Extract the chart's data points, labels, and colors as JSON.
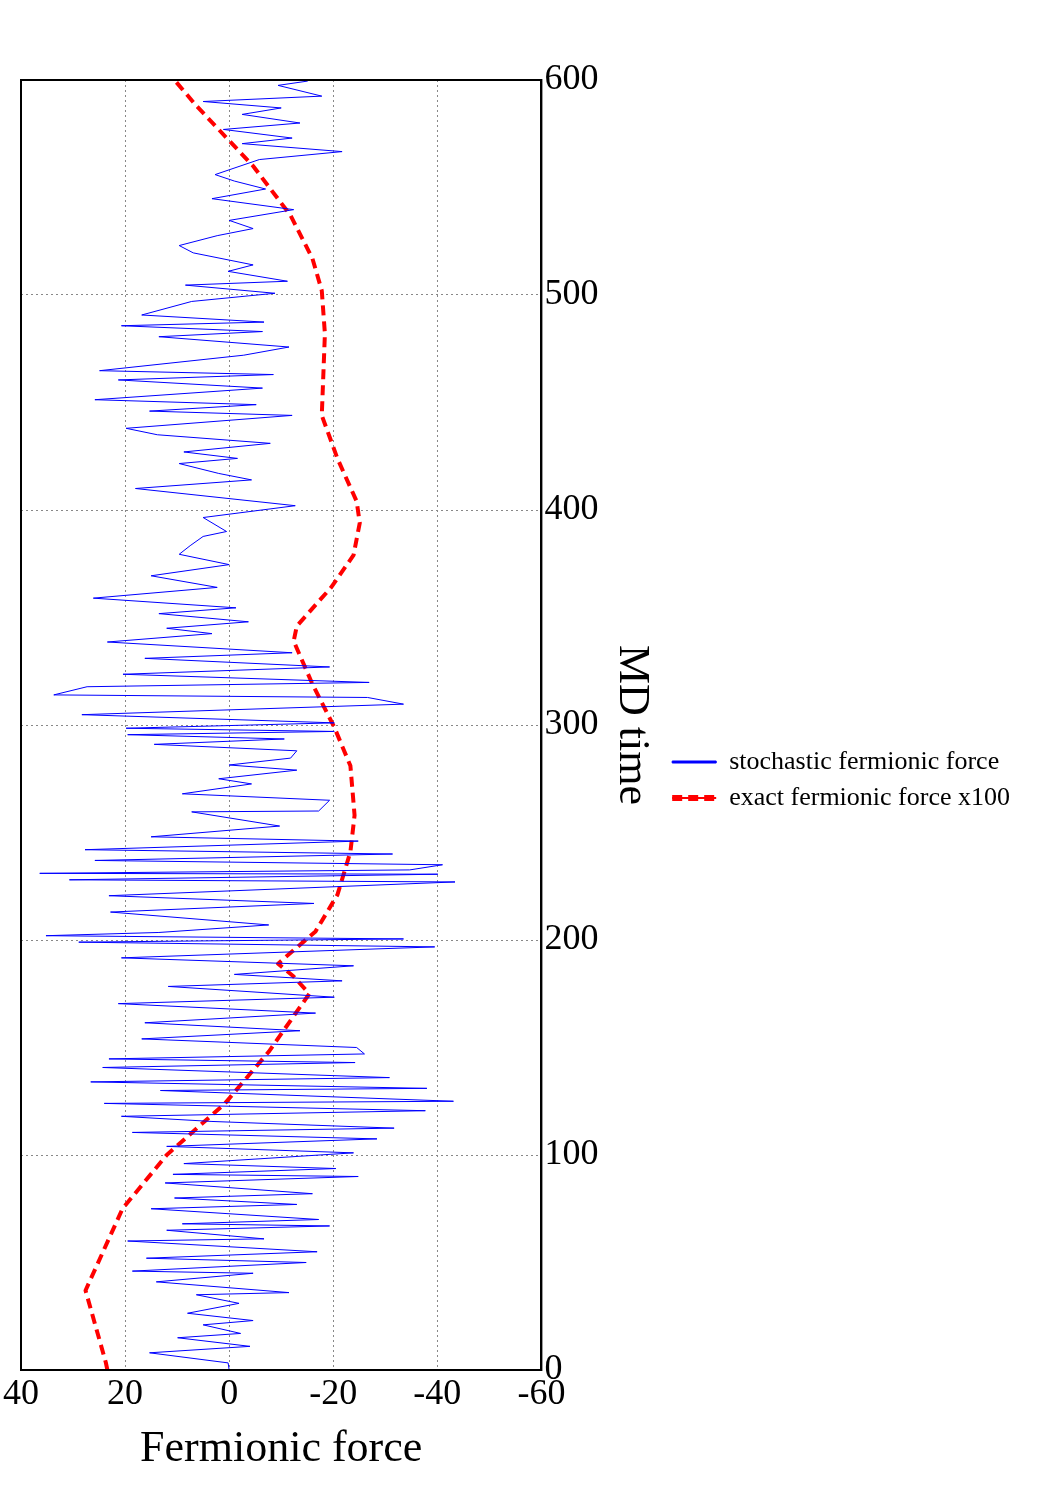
{
  "chart_data": {
    "type": "line",
    "xlabel": "Fermionic force",
    "ylabel": "MD time",
    "xlim": [
      40,
      -60
    ],
    "ylim": [
      0,
      600
    ],
    "xticks": [
      40,
      20,
      0,
      -20,
      -40,
      -60
    ],
    "yticks": [
      0,
      100,
      200,
      300,
      400,
      500,
      600
    ],
    "grid": true,
    "legend": "right",
    "series": [
      {
        "name": "stochastic fermionic force",
        "color": "#0000ff",
        "line_style": "solid",
        "values": [
          0,
          3.3,
          8,
          11,
          15,
          17,
          21,
          23,
          26.4,
          31,
          35,
          36,
          41,
          45,
          46,
          50,
          52,
          55,
          60,
          61,
          65,
          67,
          68,
          70,
          75,
          77,
          80,
          82,
          87,
          90,
          91,
          93.7,
          96,
          101,
          104,
          107.5,
          110.5,
          112.5,
          115.6,
          118,
          120.6,
          124,
          125,
          130,
          131,
          134,
          136,
          140.7,
          143,
          144.7,
          147,
          150,
          154,
          157.8,
          161.5,
          166,
          170.4,
          173.4,
          178.4,
          181,
          184,
          188,
          191.7,
          196.8,
          199,
          200.5,
          202,
          203.5,
          207,
          213,
          217,
          220.6,
          227,
          228,
          230.6,
          231,
          232.6,
          235,
          237,
          240,
          242,
          246,
          248,
          253,
          259.6,
          260,
          265,
          268,
          272.6,
          275,
          279,
          281.4,
          284.6,
          288,
          291,
          293.5,
          295.5,
          297,
          298.5,
          301,
          304.8,
          309.7,
          312.8,
          314,
          317.8,
          319.8,
          323.6,
          327,
          331,
          333.6,
          338.6,
          342.5,
          345,
          348,
          351.8,
          354.5,
          359,
          364,
          369.4,
          374.6,
          379.4,
          383.4,
          387.7,
          390,
          396.5,
          402,
          410,
          414,
          417,
          421.6,
          424,
          427,
          431,
          435,
          438,
          444,
          446,
          449,
          451.3,
          456.7,
          460.5,
          463,
          464.8,
          472,
          475.8,
          480.6,
          483,
          485.7,
          487.4,
          490.7,
          497,
          500.8,
          504.6,
          506.4,
          511,
          514,
          519.6,
          523,
          527.6,
          530.9,
          534.7,
          539.7,
          544.8,
          549.3,
          553,
          556,
          563,
          566.7,
          570.4,
          573,
          577,
          580,
          584,
          587,
          590,
          592.5,
          597.5,
          599.5
        ],
        "x": [
          0,
          0.2,
          15.3,
          -4,
          9.9,
          -2.2,
          5,
          -4.6,
          8,
          -1.9,
          6.3,
          -11.5,
          14,
          -4.6,
          18.6,
          -14.8,
          15.9,
          -16.9,
          19.5,
          -6.7,
          12,
          -19.3,
          9,
          -17.2,
          15,
          -13,
          10.5,
          -16,
          12.3,
          -24.8,
          10.8,
          -20.5,
          8.7,
          -23.9,
          12,
          -28.4,
          18.6,
          -31.7,
          3.3,
          20.7,
          -37.7,
          24,
          -43.1,
          13.2,
          -38,
          26.6,
          -30.8,
          24.3,
          -24.2,
          23.1,
          -26,
          -24.5,
          16.8,
          -13.6,
          16.2,
          -16.6,
          21.3,
          -20.2,
          11.7,
          -21.7,
          -1,
          -23.9,
          20.7,
          -39.5,
          28.9,
          -33.5,
          35.2,
          13.5,
          -7.6,
          22.8,
          -16.3,
          23.1,
          -43.4,
          30.7,
          -40.1,
          36.4,
          -34.7,
          -41,
          25.8,
          -31.4,
          27.7,
          -24.8,
          15,
          -9.7,
          7.2,
          -17.2,
          -19.3,
          9,
          -4.3,
          2,
          -13,
          0,
          -11.8,
          -13,
          14.4,
          -10.6,
          19.5,
          -20.2,
          19.8,
          -20.2,
          28.3,
          -33.5,
          -26.6,
          33.7,
          27.3,
          -26.9,
          20.4,
          -19.3,
          16.2,
          -12.1,
          23.4,
          3.3,
          12,
          -3.7,
          13.5,
          -1.3,
          26.1,
          2.3,
          15,
          0,
          9.6,
          7.5,
          5,
          0.5,
          5,
          -12.7,
          18,
          -4.3,
          2,
          9.6,
          -1.6,
          8.7,
          -7.9,
          13.8,
          19.8,
          -12.1,
          15.3,
          -5.2,
          25.8,
          -6.4,
          21.3,
          -8.5,
          24.9,
          -2.8,
          -11.5,
          13.5,
          -6.4,
          20.7,
          -6.7,
          16.8,
          7.2,
          -8.8,
          8.4,
          -11.2,
          0.2,
          -4.6,
          6.9,
          9.6,
          2.3,
          -4.6,
          0,
          -12.4,
          3.3,
          -7,
          -1,
          2.7,
          -5.8,
          -21.7,
          -2.5,
          -12.1,
          1.1,
          -13.6,
          -2.5,
          -10,
          5,
          -17.8,
          -9.4,
          -15.1
        ]
      },
      {
        "name": "exact fermionic force x100",
        "color": "#ff0000",
        "line_style": "dashed",
        "values": [
          0,
          3.5,
          37,
          75,
          100,
          124,
          148,
          175,
          183,
          189,
          204,
          221,
          241,
          258,
          281,
          299,
          319,
          339,
          346,
          364,
          379,
          394,
          404,
          424,
          444,
          482,
          502,
          517,
          537,
          560,
          588,
          600
        ],
        "x": [
          23.4,
          23.7,
          27.6,
          20.5,
          12,
          0.8,
          -7.6,
          -15.4,
          -12.4,
          -9.4,
          -16.6,
          -20.8,
          -23.3,
          -24.1,
          -23.3,
          -20.2,
          -16,
          -12.4,
          -13,
          -19.6,
          -23.9,
          -25.1,
          -24.5,
          -20.8,
          -17.8,
          -18.4,
          -17.8,
          -16,
          -11.8,
          -4.6,
          6.3,
          10.5
        ]
      }
    ]
  }
}
